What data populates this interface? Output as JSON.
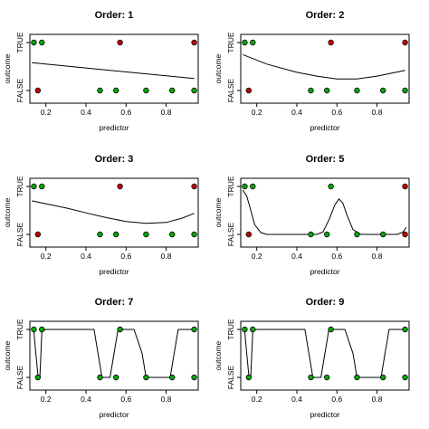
{
  "chart_data": [
    {
      "type": "scatter",
      "title": "Order: 1",
      "xlabel": "predictor",
      "ylabel": "outcome",
      "y_tick_labels": [
        "FALSE",
        "TRUE"
      ],
      "x_ticks": [
        "0.2",
        "0.4",
        "0.6",
        "0.8"
      ],
      "xlim": [
        0.12,
        0.96
      ],
      "points": [
        {
          "x": 0.14,
          "outcome": "TRUE",
          "color": "green"
        },
        {
          "x": 0.18,
          "outcome": "TRUE",
          "color": "green"
        },
        {
          "x": 0.57,
          "outcome": "TRUE",
          "color": "red"
        },
        {
          "x": 0.94,
          "outcome": "TRUE",
          "color": "red"
        },
        {
          "x": 0.16,
          "outcome": "FALSE",
          "color": "red"
        },
        {
          "x": 0.47,
          "outcome": "FALSE",
          "color": "green"
        },
        {
          "x": 0.55,
          "outcome": "FALSE",
          "color": "green"
        },
        {
          "x": 0.7,
          "outcome": "FALSE",
          "color": "green"
        },
        {
          "x": 0.83,
          "outcome": "FALSE",
          "color": "green"
        },
        {
          "x": 0.94,
          "outcome": "FALSE",
          "color": "green"
        }
      ],
      "fit": {
        "x": [
          0.13,
          0.94
        ],
        "y": [
          0.58,
          0.25
        ]
      }
    },
    {
      "type": "scatter",
      "title": "Order: 2",
      "xlabel": "predictor",
      "ylabel": "outcome",
      "y_tick_labels": [
        "FALSE",
        "TRUE"
      ],
      "x_ticks": [
        "0.2",
        "0.4",
        "0.6",
        "0.8"
      ],
      "xlim": [
        0.12,
        0.96
      ],
      "points": [
        {
          "x": 0.14,
          "outcome": "TRUE",
          "color": "green"
        },
        {
          "x": 0.18,
          "outcome": "TRUE",
          "color": "green"
        },
        {
          "x": 0.57,
          "outcome": "TRUE",
          "color": "red"
        },
        {
          "x": 0.94,
          "outcome": "TRUE",
          "color": "red"
        },
        {
          "x": 0.16,
          "outcome": "FALSE",
          "color": "red"
        },
        {
          "x": 0.47,
          "outcome": "FALSE",
          "color": "green"
        },
        {
          "x": 0.55,
          "outcome": "FALSE",
          "color": "green"
        },
        {
          "x": 0.7,
          "outcome": "FALSE",
          "color": "green"
        },
        {
          "x": 0.83,
          "outcome": "FALSE",
          "color": "green"
        },
        {
          "x": 0.94,
          "outcome": "FALSE",
          "color": "green"
        }
      ],
      "fit": {
        "x": [
          0.13,
          0.25,
          0.4,
          0.5,
          0.6,
          0.7,
          0.8,
          0.94
        ],
        "y": [
          0.75,
          0.55,
          0.38,
          0.3,
          0.24,
          0.24,
          0.3,
          0.42
        ]
      }
    },
    {
      "type": "scatter",
      "title": "Order: 3",
      "xlabel": "predictor",
      "ylabel": "outcome",
      "y_tick_labels": [
        "FALSE",
        "TRUE"
      ],
      "x_ticks": [
        "0.2",
        "0.4",
        "0.6",
        "0.8"
      ],
      "xlim": [
        0.12,
        0.96
      ],
      "points": [
        {
          "x": 0.14,
          "outcome": "TRUE",
          "color": "green"
        },
        {
          "x": 0.18,
          "outcome": "TRUE",
          "color": "green"
        },
        {
          "x": 0.57,
          "outcome": "TRUE",
          "color": "red"
        },
        {
          "x": 0.94,
          "outcome": "TRUE",
          "color": "red"
        },
        {
          "x": 0.16,
          "outcome": "FALSE",
          "color": "red"
        },
        {
          "x": 0.47,
          "outcome": "FALSE",
          "color": "green"
        },
        {
          "x": 0.55,
          "outcome": "FALSE",
          "color": "green"
        },
        {
          "x": 0.7,
          "outcome": "FALSE",
          "color": "green"
        },
        {
          "x": 0.83,
          "outcome": "FALSE",
          "color": "green"
        },
        {
          "x": 0.94,
          "outcome": "FALSE",
          "color": "green"
        }
      ],
      "fit": {
        "x": [
          0.13,
          0.2,
          0.3,
          0.4,
          0.5,
          0.6,
          0.7,
          0.8,
          0.88,
          0.94
        ],
        "y": [
          0.7,
          0.64,
          0.55,
          0.45,
          0.35,
          0.27,
          0.23,
          0.25,
          0.34,
          0.44
        ]
      }
    },
    {
      "type": "scatter",
      "title": "Order: 5",
      "xlabel": "predictor",
      "ylabel": "outcome",
      "y_tick_labels": [
        "FALSE",
        "TRUE"
      ],
      "x_ticks": [
        "0.2",
        "0.4",
        "0.6",
        "0.8"
      ],
      "xlim": [
        0.12,
        0.96
      ],
      "points": [
        {
          "x": 0.14,
          "outcome": "TRUE",
          "color": "green"
        },
        {
          "x": 0.18,
          "outcome": "TRUE",
          "color": "green"
        },
        {
          "x": 0.57,
          "outcome": "TRUE",
          "color": "green"
        },
        {
          "x": 0.94,
          "outcome": "TRUE",
          "color": "red"
        },
        {
          "x": 0.16,
          "outcome": "FALSE",
          "color": "red"
        },
        {
          "x": 0.47,
          "outcome": "FALSE",
          "color": "green"
        },
        {
          "x": 0.55,
          "outcome": "FALSE",
          "color": "green"
        },
        {
          "x": 0.7,
          "outcome": "FALSE",
          "color": "green"
        },
        {
          "x": 0.83,
          "outcome": "FALSE",
          "color": "green"
        },
        {
          "x": 0.94,
          "outcome": "FALSE",
          "color": "red"
        }
      ],
      "fit": {
        "x": [
          0.13,
          0.15,
          0.17,
          0.19,
          0.22,
          0.25,
          0.3,
          0.4,
          0.5,
          0.53,
          0.56,
          0.59,
          0.61,
          0.63,
          0.65,
          0.68,
          0.72,
          0.8,
          0.9,
          0.93,
          0.945
        ],
        "y": [
          0.92,
          0.8,
          0.5,
          0.2,
          0.04,
          0.0,
          0.0,
          0.0,
          0.0,
          0.05,
          0.3,
          0.62,
          0.74,
          0.65,
          0.4,
          0.1,
          0.0,
          0.0,
          0.0,
          0.05,
          0.15
        ]
      }
    },
    {
      "type": "scatter",
      "title": "Order: 7",
      "xlabel": "predictor",
      "ylabel": "outcome",
      "y_tick_labels": [
        "FALSE",
        "TRUE"
      ],
      "x_ticks": [
        "0.2",
        "0.4",
        "0.6",
        "0.8"
      ],
      "xlim": [
        0.12,
        0.96
      ],
      "points": [
        {
          "x": 0.14,
          "outcome": "TRUE",
          "color": "green"
        },
        {
          "x": 0.18,
          "outcome": "TRUE",
          "color": "green"
        },
        {
          "x": 0.57,
          "outcome": "TRUE",
          "color": "green"
        },
        {
          "x": 0.94,
          "outcome": "TRUE",
          "color": "green"
        },
        {
          "x": 0.16,
          "outcome": "FALSE",
          "color": "green"
        },
        {
          "x": 0.47,
          "outcome": "FALSE",
          "color": "green"
        },
        {
          "x": 0.55,
          "outcome": "FALSE",
          "color": "green"
        },
        {
          "x": 0.7,
          "outcome": "FALSE",
          "color": "green"
        },
        {
          "x": 0.83,
          "outcome": "FALSE",
          "color": "green"
        },
        {
          "x": 0.94,
          "outcome": "FALSE",
          "color": "green"
        }
      ],
      "fit": {
        "x": [
          0.13,
          0.14,
          0.15,
          0.16,
          0.17,
          0.175,
          0.18,
          0.2,
          0.3,
          0.44,
          0.46,
          0.48,
          0.52,
          0.54,
          0.56,
          0.58,
          0.6,
          0.64,
          0.68,
          0.7,
          0.8,
          0.82,
          0.84,
          0.86,
          0.94
        ],
        "y": [
          1.0,
          0.97,
          0.5,
          0.05,
          0.03,
          0.5,
          0.97,
          1.0,
          1.0,
          1.0,
          0.5,
          0.0,
          0.0,
          0.5,
          1.0,
          1.0,
          1.0,
          1.0,
          0.5,
          0.0,
          0.0,
          0.0,
          0.5,
          1.0,
          1.0
        ]
      }
    },
    {
      "type": "scatter",
      "title": "Order: 9",
      "xlabel": "predictor",
      "ylabel": "outcome",
      "y_tick_labels": [
        "FALSE",
        "TRUE"
      ],
      "x_ticks": [
        "0.2",
        "0.4",
        "0.6",
        "0.8"
      ],
      "xlim": [
        0.12,
        0.96
      ],
      "points": [
        {
          "x": 0.14,
          "outcome": "TRUE",
          "color": "green"
        },
        {
          "x": 0.18,
          "outcome": "TRUE",
          "color": "green"
        },
        {
          "x": 0.57,
          "outcome": "TRUE",
          "color": "green"
        },
        {
          "x": 0.94,
          "outcome": "TRUE",
          "color": "green"
        },
        {
          "x": 0.16,
          "outcome": "FALSE",
          "color": "green"
        },
        {
          "x": 0.47,
          "outcome": "FALSE",
          "color": "green"
        },
        {
          "x": 0.55,
          "outcome": "FALSE",
          "color": "green"
        },
        {
          "x": 0.7,
          "outcome": "FALSE",
          "color": "green"
        },
        {
          "x": 0.83,
          "outcome": "FALSE",
          "color": "green"
        },
        {
          "x": 0.94,
          "outcome": "FALSE",
          "color": "green"
        }
      ],
      "fit": {
        "x": [
          0.13,
          0.14,
          0.15,
          0.16,
          0.17,
          0.175,
          0.18,
          0.2,
          0.3,
          0.44,
          0.46,
          0.48,
          0.52,
          0.54,
          0.56,
          0.58,
          0.6,
          0.64,
          0.68,
          0.7,
          0.8,
          0.82,
          0.84,
          0.86,
          0.94
        ],
        "y": [
          1.0,
          0.97,
          0.5,
          0.05,
          0.03,
          0.5,
          0.97,
          1.0,
          1.0,
          1.0,
          0.5,
          0.0,
          0.0,
          0.5,
          1.0,
          1.0,
          1.0,
          1.0,
          0.5,
          0.0,
          0.0,
          0.0,
          0.5,
          1.0,
          1.0
        ]
      }
    }
  ],
  "colors": {
    "green": "#00aa00",
    "red": "#cc0000",
    "point_outline": "#000000",
    "line": "#000000"
  }
}
